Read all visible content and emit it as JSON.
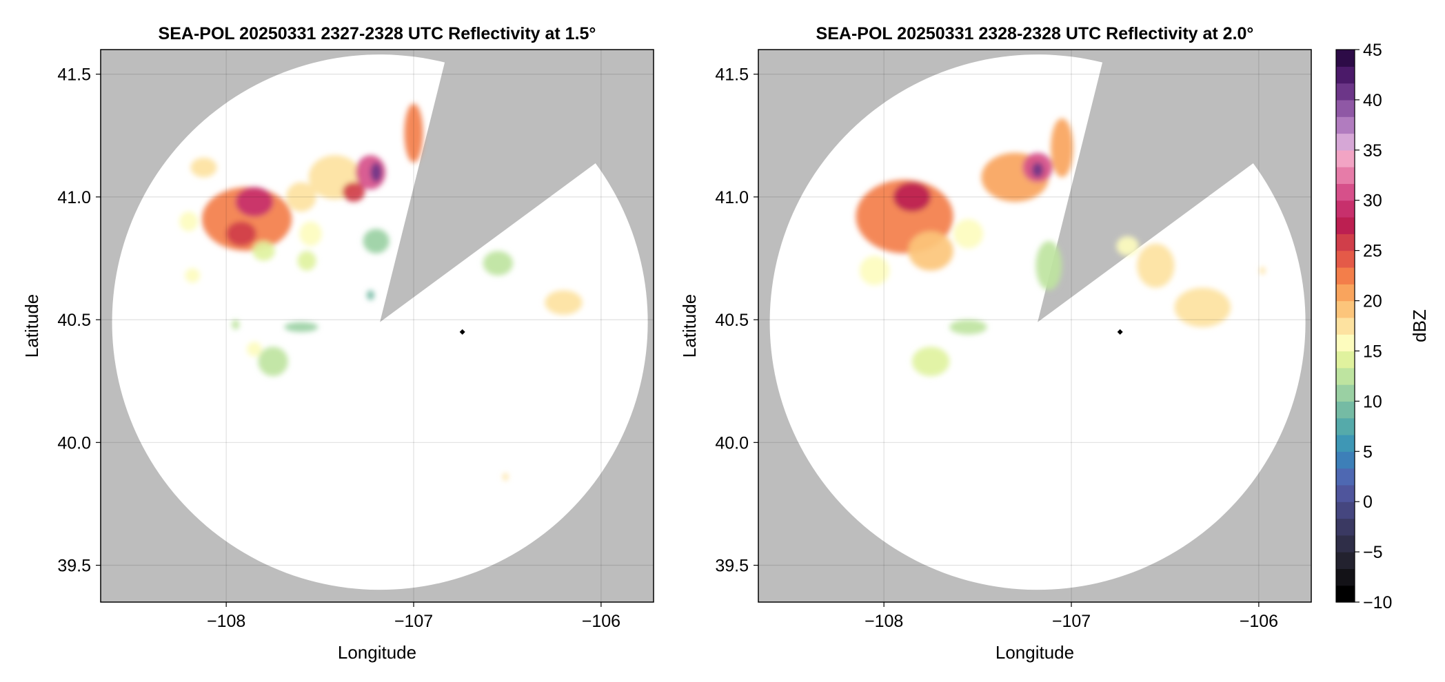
{
  "chart_data": [
    {
      "type": "heatmap",
      "title": "SEA-POL 20250331 2327-2328 UTC Reflectivity at 1.5°",
      "xlabel": "Longitude",
      "ylabel": "Latitude",
      "xlim": [
        -108.67,
        -105.72
      ],
      "ylim": [
        39.35,
        41.6
      ],
      "x_ticks": [
        -108,
        -107,
        -106
      ],
      "x_tick_labels": [
        "−108",
        "−107",
        "−106"
      ],
      "y_ticks": [
        39.5,
        40.0,
        40.5,
        41.0,
        41.5
      ],
      "y_tick_labels": [
        "39.5",
        "40.0",
        "40.5",
        "41.0",
        "41.5"
      ],
      "grid": true,
      "background_color": "#bdbdbd",
      "radar": {
        "center": [
          -107.18,
          40.49
        ],
        "range_deg_lat": 1.09,
        "blocked_sector": {
          "tip": [
            -107.18,
            40.49
          ],
          "edge1": [
            -106.84,
            41.53
          ],
          "edge2": [
            -106.06,
            41.12
          ]
        }
      },
      "marker": [
        -106.74,
        40.45
      ],
      "cells": [
        {
          "lon": -107.89,
          "lat": 40.91,
          "rlon": 0.24,
          "rlat": 0.13,
          "dbz": 22
        },
        {
          "lon": -107.85,
          "lat": 40.98,
          "rlon": 0.1,
          "rlat": 0.06,
          "dbz": 29
        },
        {
          "lon": -107.92,
          "lat": 40.85,
          "rlon": 0.08,
          "rlat": 0.05,
          "dbz": 26
        },
        {
          "lon": -108.12,
          "lat": 41.12,
          "rlon": 0.07,
          "rlat": 0.04,
          "dbz": 17
        },
        {
          "lon": -108.2,
          "lat": 40.9,
          "rlon": 0.05,
          "rlat": 0.04,
          "dbz": 16
        },
        {
          "lon": -108.18,
          "lat": 40.68,
          "rlon": 0.04,
          "rlat": 0.03,
          "dbz": 16
        },
        {
          "lon": -107.42,
          "lat": 41.08,
          "rlon": 0.14,
          "rlat": 0.09,
          "dbz": 18
        },
        {
          "lon": -107.6,
          "lat": 41.0,
          "rlon": 0.08,
          "rlat": 0.06,
          "dbz": 17
        },
        {
          "lon": -107.55,
          "lat": 40.85,
          "rlon": 0.06,
          "rlat": 0.05,
          "dbz": 15
        },
        {
          "lon": -107.57,
          "lat": 40.74,
          "rlon": 0.05,
          "rlat": 0.04,
          "dbz": 14
        },
        {
          "lon": -107.23,
          "lat": 41.1,
          "rlon": 0.08,
          "rlat": 0.07,
          "dbz": 31
        },
        {
          "lon": -107.2,
          "lat": 41.1,
          "rlon": 0.03,
          "rlat": 0.04,
          "dbz": 40
        },
        {
          "lon": -107.0,
          "lat": 41.26,
          "rlon": 0.05,
          "rlat": 0.12,
          "dbz": 23
        },
        {
          "lon": -107.2,
          "lat": 40.82,
          "rlon": 0.07,
          "rlat": 0.05,
          "dbz": 11
        },
        {
          "lon": -107.32,
          "lat": 41.02,
          "rlon": 0.06,
          "rlat": 0.04,
          "dbz": 26
        },
        {
          "lon": -107.23,
          "lat": 40.6,
          "rlon": 0.02,
          "rlat": 0.02,
          "dbz": 9
        },
        {
          "lon": -107.8,
          "lat": 40.78,
          "rlon": 0.06,
          "rlat": 0.04,
          "dbz": 14
        },
        {
          "lon": -107.75,
          "lat": 40.33,
          "rlon": 0.08,
          "rlat": 0.06,
          "dbz": 12
        },
        {
          "lon": -107.85,
          "lat": 40.38,
          "rlon": 0.04,
          "rlat": 0.03,
          "dbz": 16
        },
        {
          "lon": -107.6,
          "lat": 40.47,
          "rlon": 0.09,
          "rlat": 0.02,
          "dbz": 11
        },
        {
          "lon": -107.95,
          "lat": 40.48,
          "rlon": 0.02,
          "rlat": 0.02,
          "dbz": 13
        },
        {
          "lon": -106.55,
          "lat": 40.73,
          "rlon": 0.08,
          "rlat": 0.05,
          "dbz": 13
        },
        {
          "lon": -106.2,
          "lat": 40.57,
          "rlon": 0.1,
          "rlat": 0.05,
          "dbz": 17
        },
        {
          "lon": -106.51,
          "lat": 39.86,
          "rlon": 0.015,
          "rlat": 0.015,
          "dbz": 18
        }
      ]
    },
    {
      "type": "heatmap",
      "title": "SEA-POL 20250331 2328-2328 UTC Reflectivity at 2.0°",
      "xlabel": "Longitude",
      "ylabel": "Latitude",
      "xlim": [
        -108.67,
        -105.72
      ],
      "ylim": [
        39.35,
        41.6
      ],
      "x_ticks": [
        -108,
        -107,
        -106
      ],
      "x_tick_labels": [
        "−108",
        "−107",
        "−106"
      ],
      "y_ticks": [
        39.5,
        40.0,
        40.5,
        41.0,
        41.5
      ],
      "y_tick_labels": [
        "39.5",
        "40.0",
        "40.5",
        "41.0",
        "41.5"
      ],
      "grid": true,
      "background_color": "#bdbdbd",
      "radar": {
        "center": [
          -107.18,
          40.49
        ],
        "range_deg_lat": 1.09,
        "blocked_sector": {
          "tip": [
            -107.18,
            40.49
          ],
          "edge1": [
            -106.84,
            41.53
          ],
          "edge2": [
            -106.06,
            41.12
          ]
        }
      },
      "marker": [
        -106.74,
        40.45
      ],
      "cells": [
        {
          "lon": -107.89,
          "lat": 40.92,
          "rlon": 0.26,
          "rlat": 0.15,
          "dbz": 22
        },
        {
          "lon": -107.85,
          "lat": 41.0,
          "rlon": 0.1,
          "rlat": 0.06,
          "dbz": 27
        },
        {
          "lon": -107.75,
          "lat": 40.78,
          "rlon": 0.12,
          "rlat": 0.08,
          "dbz": 19
        },
        {
          "lon": -108.05,
          "lat": 40.7,
          "rlon": 0.08,
          "rlat": 0.06,
          "dbz": 15
        },
        {
          "lon": -107.3,
          "lat": 41.08,
          "rlon": 0.18,
          "rlat": 0.1,
          "dbz": 21
        },
        {
          "lon": -107.18,
          "lat": 41.12,
          "rlon": 0.08,
          "rlat": 0.06,
          "dbz": 31
        },
        {
          "lon": -107.18,
          "lat": 41.11,
          "rlon": 0.03,
          "rlat": 0.03,
          "dbz": 40
        },
        {
          "lon": -107.05,
          "lat": 41.2,
          "rlon": 0.06,
          "rlat": 0.12,
          "dbz": 20
        },
        {
          "lon": -107.55,
          "lat": 40.85,
          "rlon": 0.08,
          "rlat": 0.06,
          "dbz": 15
        },
        {
          "lon": -107.12,
          "lat": 40.72,
          "rlon": 0.07,
          "rlat": 0.1,
          "dbz": 12
        },
        {
          "lon": -107.75,
          "lat": 40.33,
          "rlon": 0.1,
          "rlat": 0.06,
          "dbz": 14
        },
        {
          "lon": -107.55,
          "lat": 40.47,
          "rlon": 0.1,
          "rlat": 0.03,
          "dbz": 12
        },
        {
          "lon": -106.55,
          "lat": 40.72,
          "rlon": 0.1,
          "rlat": 0.09,
          "dbz": 18
        },
        {
          "lon": -106.3,
          "lat": 40.55,
          "rlon": 0.15,
          "rlat": 0.08,
          "dbz": 17
        },
        {
          "lon": -106.7,
          "lat": 40.8,
          "rlon": 0.06,
          "rlat": 0.04,
          "dbz": 15
        },
        {
          "lon": -105.98,
          "lat": 40.7,
          "rlon": 0.015,
          "rlat": 0.015,
          "dbz": 17
        }
      ]
    }
  ],
  "colorbar": {
    "label": "dBZ",
    "range": [
      -10,
      45
    ],
    "step": 2.5,
    "ticks": [
      45,
      40,
      35,
      30,
      25,
      20,
      15,
      10,
      5,
      0,
      -5,
      -10
    ],
    "tick_labels": [
      "45",
      "40",
      "35",
      "30",
      "25",
      "20",
      "15",
      "10",
      "5",
      "0",
      "−5",
      "−10"
    ],
    "colors": [
      "#000000",
      "#131217",
      "#23222f",
      "#2f2e48",
      "#3a3962",
      "#45467f",
      "#4f559c",
      "#4e68b2",
      "#3d7fb8",
      "#3e97b5",
      "#55aaaa",
      "#75bba4",
      "#9ad0a3",
      "#bee4a0",
      "#e0f29e",
      "#fdfcbe",
      "#fde2a0",
      "#fcc57b",
      "#f9a45d",
      "#f37e4a",
      "#e45a48",
      "#d03e4a",
      "#bc1f51",
      "#c7306c",
      "#d6508a",
      "#e67ca8",
      "#f2a4c4",
      "#d6a7d6",
      "#b17cbf",
      "#8f58a5",
      "#6c3688",
      "#4b1a69",
      "#2d0b47"
    ]
  }
}
